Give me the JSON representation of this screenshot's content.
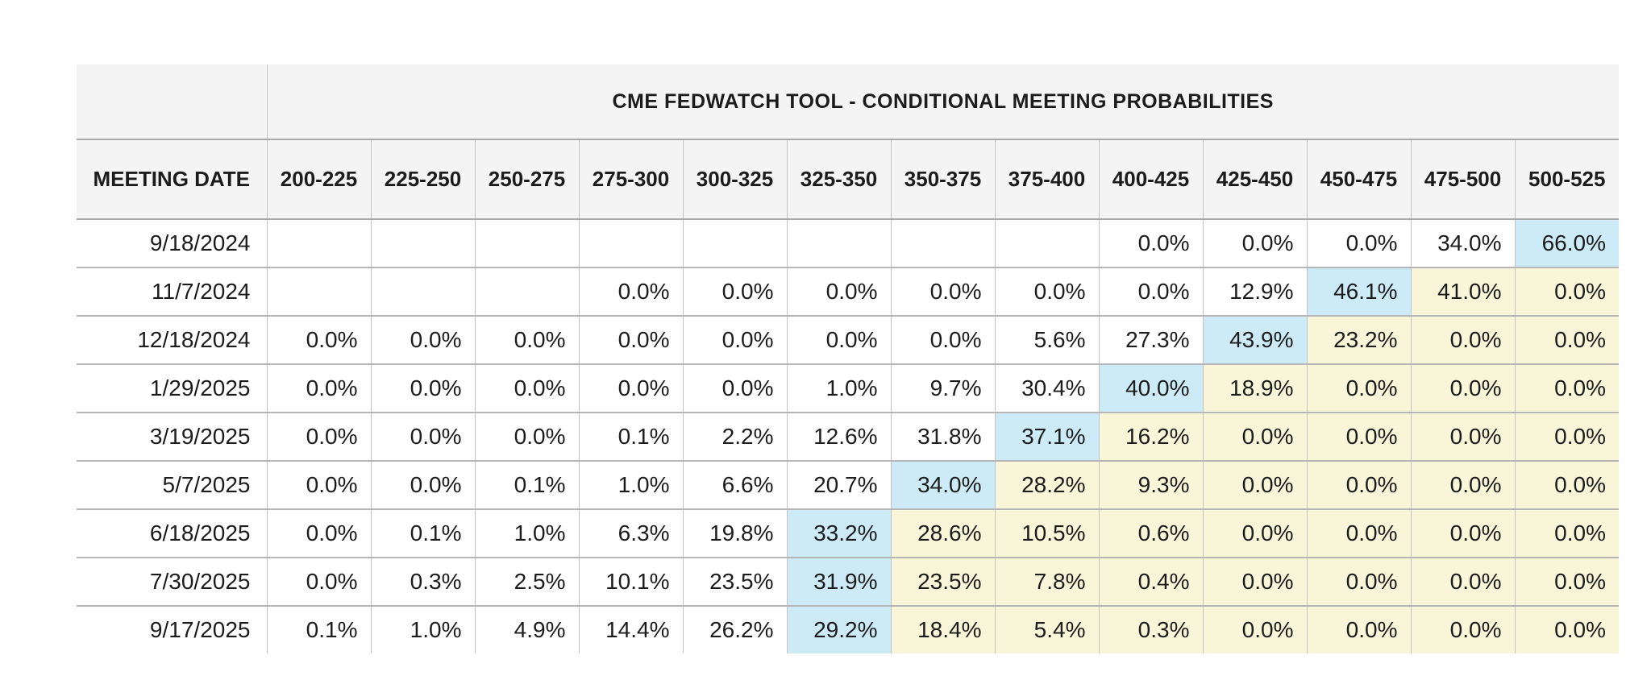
{
  "colors": {
    "header_bg": "#f4f4f4",
    "highlight_blue": "#cdebf7",
    "highlight_yellow": "#f8f5d8",
    "grid_line": "#c3c3c3",
    "grid_strong": "#a8a8a8",
    "grid_mid": "#b6b6b6",
    "text": "#1c1c1c",
    "page_bg": "#ffffff"
  },
  "table": {
    "title": "CME FEDWATCH TOOL - CONDITIONAL MEETING PROBABILITIES",
    "date_column_header": "MEETING DATE",
    "rate_columns": [
      "200-225",
      "225-250",
      "250-275",
      "275-300",
      "300-325",
      "325-350",
      "350-375",
      "375-400",
      "400-425",
      "425-450",
      "450-475",
      "475-500",
      "500-525"
    ],
    "rows": [
      {
        "date": "9/18/2024",
        "cells": [
          [
            "",
            ""
          ],
          [
            "",
            ""
          ],
          [
            "",
            ""
          ],
          [
            "",
            ""
          ],
          [
            "",
            ""
          ],
          [
            "",
            ""
          ],
          [
            "",
            ""
          ],
          [
            "",
            ""
          ],
          [
            "0.0%",
            ""
          ],
          [
            "0.0%",
            ""
          ],
          [
            "0.0%",
            ""
          ],
          [
            "34.0%",
            ""
          ],
          [
            "66.0%",
            "b"
          ]
        ]
      },
      {
        "date": "11/7/2024",
        "cells": [
          [
            "",
            ""
          ],
          [
            "",
            ""
          ],
          [
            "",
            ""
          ],
          [
            "0.0%",
            ""
          ],
          [
            "0.0%",
            ""
          ],
          [
            "0.0%",
            ""
          ],
          [
            "0.0%",
            ""
          ],
          [
            "0.0%",
            ""
          ],
          [
            "0.0%",
            ""
          ],
          [
            "12.9%",
            ""
          ],
          [
            "46.1%",
            "b"
          ],
          [
            "41.0%",
            "y"
          ],
          [
            "0.0%",
            "y"
          ]
        ]
      },
      {
        "date": "12/18/2024",
        "cells": [
          [
            "0.0%",
            ""
          ],
          [
            "0.0%",
            ""
          ],
          [
            "0.0%",
            ""
          ],
          [
            "0.0%",
            ""
          ],
          [
            "0.0%",
            ""
          ],
          [
            "0.0%",
            ""
          ],
          [
            "0.0%",
            ""
          ],
          [
            "5.6%",
            ""
          ],
          [
            "27.3%",
            ""
          ],
          [
            "43.9%",
            "b"
          ],
          [
            "23.2%",
            "y"
          ],
          [
            "0.0%",
            "y"
          ],
          [
            "0.0%",
            "y"
          ]
        ]
      },
      {
        "date": "1/29/2025",
        "cells": [
          [
            "0.0%",
            ""
          ],
          [
            "0.0%",
            ""
          ],
          [
            "0.0%",
            ""
          ],
          [
            "0.0%",
            ""
          ],
          [
            "0.0%",
            ""
          ],
          [
            "1.0%",
            ""
          ],
          [
            "9.7%",
            ""
          ],
          [
            "30.4%",
            ""
          ],
          [
            "40.0%",
            "b"
          ],
          [
            "18.9%",
            "y"
          ],
          [
            "0.0%",
            "y"
          ],
          [
            "0.0%",
            "y"
          ],
          [
            "0.0%",
            "y"
          ]
        ]
      },
      {
        "date": "3/19/2025",
        "cells": [
          [
            "0.0%",
            ""
          ],
          [
            "0.0%",
            ""
          ],
          [
            "0.0%",
            ""
          ],
          [
            "0.1%",
            ""
          ],
          [
            "2.2%",
            ""
          ],
          [
            "12.6%",
            ""
          ],
          [
            "31.8%",
            ""
          ],
          [
            "37.1%",
            "b"
          ],
          [
            "16.2%",
            "y"
          ],
          [
            "0.0%",
            "y"
          ],
          [
            "0.0%",
            "y"
          ],
          [
            "0.0%",
            "y"
          ],
          [
            "0.0%",
            "y"
          ]
        ]
      },
      {
        "date": "5/7/2025",
        "cells": [
          [
            "0.0%",
            ""
          ],
          [
            "0.0%",
            ""
          ],
          [
            "0.1%",
            ""
          ],
          [
            "1.0%",
            ""
          ],
          [
            "6.6%",
            ""
          ],
          [
            "20.7%",
            ""
          ],
          [
            "34.0%",
            "b"
          ],
          [
            "28.2%",
            "y"
          ],
          [
            "9.3%",
            "y"
          ],
          [
            "0.0%",
            "y"
          ],
          [
            "0.0%",
            "y"
          ],
          [
            "0.0%",
            "y"
          ],
          [
            "0.0%",
            "y"
          ]
        ]
      },
      {
        "date": "6/18/2025",
        "cells": [
          [
            "0.0%",
            ""
          ],
          [
            "0.1%",
            ""
          ],
          [
            "1.0%",
            ""
          ],
          [
            "6.3%",
            ""
          ],
          [
            "19.8%",
            ""
          ],
          [
            "33.2%",
            "b"
          ],
          [
            "28.6%",
            "y"
          ],
          [
            "10.5%",
            "y"
          ],
          [
            "0.6%",
            "y"
          ],
          [
            "0.0%",
            "y"
          ],
          [
            "0.0%",
            "y"
          ],
          [
            "0.0%",
            "y"
          ],
          [
            "0.0%",
            "y"
          ]
        ]
      },
      {
        "date": "7/30/2025",
        "cells": [
          [
            "0.0%",
            ""
          ],
          [
            "0.3%",
            ""
          ],
          [
            "2.5%",
            ""
          ],
          [
            "10.1%",
            ""
          ],
          [
            "23.5%",
            ""
          ],
          [
            "31.9%",
            "b"
          ],
          [
            "23.5%",
            "y"
          ],
          [
            "7.8%",
            "y"
          ],
          [
            "0.4%",
            "y"
          ],
          [
            "0.0%",
            "y"
          ],
          [
            "0.0%",
            "y"
          ],
          [
            "0.0%",
            "y"
          ],
          [
            "0.0%",
            "y"
          ]
        ]
      },
      {
        "date": "9/17/2025",
        "cells": [
          [
            "0.1%",
            ""
          ],
          [
            "1.0%",
            ""
          ],
          [
            "4.9%",
            ""
          ],
          [
            "14.4%",
            ""
          ],
          [
            "26.2%",
            ""
          ],
          [
            "29.2%",
            "b"
          ],
          [
            "18.4%",
            "y"
          ],
          [
            "5.4%",
            "y"
          ],
          [
            "0.3%",
            "y"
          ],
          [
            "0.0%",
            "y"
          ],
          [
            "0.0%",
            "y"
          ],
          [
            "0.0%",
            "y"
          ],
          [
            "0.0%",
            "y"
          ]
        ]
      }
    ],
    "highlight_legend": {
      "b": "highlight_blue",
      "y": "highlight_yellow"
    }
  },
  "chart_data": {
    "type": "table",
    "title": "CME FEDWATCH TOOL - CONDITIONAL MEETING PROBABILITIES",
    "row_header": "MEETING DATE",
    "columns": [
      "200-225",
      "225-250",
      "250-275",
      "275-300",
      "300-325",
      "325-350",
      "350-375",
      "375-400",
      "400-425",
      "425-450",
      "450-475",
      "475-500",
      "500-525"
    ],
    "rows": [
      "9/18/2024",
      "11/7/2024",
      "12/18/2024",
      "1/29/2025",
      "3/19/2025",
      "5/7/2025",
      "6/18/2025",
      "7/30/2025",
      "9/17/2025"
    ],
    "values_pct": [
      [
        null,
        null,
        null,
        null,
        null,
        null,
        null,
        null,
        0.0,
        0.0,
        0.0,
        34.0,
        66.0
      ],
      [
        null,
        null,
        null,
        0.0,
        0.0,
        0.0,
        0.0,
        0.0,
        0.0,
        12.9,
        46.1,
        41.0,
        0.0
      ],
      [
        0.0,
        0.0,
        0.0,
        0.0,
        0.0,
        0.0,
        0.0,
        5.6,
        27.3,
        43.9,
        23.2,
        0.0,
        0.0
      ],
      [
        0.0,
        0.0,
        0.0,
        0.0,
        0.0,
        1.0,
        9.7,
        30.4,
        40.0,
        18.9,
        0.0,
        0.0,
        0.0
      ],
      [
        0.0,
        0.0,
        0.0,
        0.1,
        2.2,
        12.6,
        31.8,
        37.1,
        16.2,
        0.0,
        0.0,
        0.0,
        0.0
      ],
      [
        0.0,
        0.0,
        0.1,
        1.0,
        6.6,
        20.7,
        34.0,
        28.2,
        9.3,
        0.0,
        0.0,
        0.0,
        0.0
      ],
      [
        0.0,
        0.1,
        1.0,
        6.3,
        19.8,
        33.2,
        28.6,
        10.5,
        0.6,
        0.0,
        0.0,
        0.0,
        0.0
      ],
      [
        0.0,
        0.3,
        2.5,
        10.1,
        23.5,
        31.9,
        23.5,
        7.8,
        0.4,
        0.0,
        0.0,
        0.0,
        0.0
      ],
      [
        0.1,
        1.0,
        4.9,
        14.4,
        26.2,
        29.2,
        18.4,
        5.4,
        0.3,
        0.0,
        0.0,
        0.0,
        0.0
      ]
    ],
    "modal_cell_per_row": [
      "500-525",
      "450-475",
      "425-450",
      "400-425",
      "375-400",
      "350-375",
      "325-350",
      "325-350",
      "325-350"
    ],
    "layout": {
      "grid": true,
      "legend": false
    }
  }
}
